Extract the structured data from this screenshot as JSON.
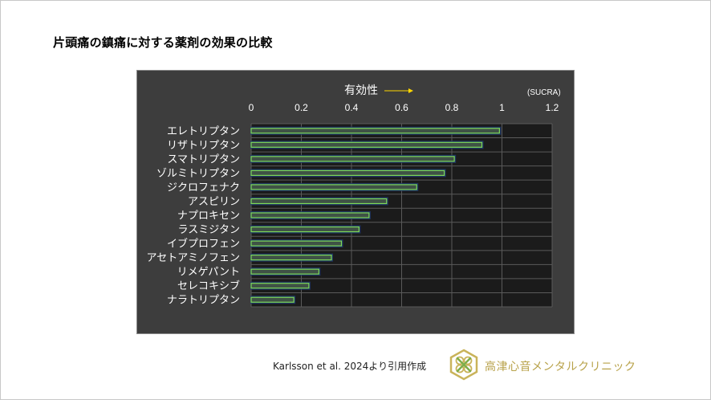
{
  "slide": {
    "title": "片頭痛の鎮痛に対する薬剤の効果の比較",
    "citation": "Karlsson et al. 2024より引用作成",
    "clinic_name": "高津心音メンタルクリニック"
  },
  "colors": {
    "panel_bg": "#3d3d3d",
    "plot_bg": "#1b1b1b",
    "grid": "#5a5a5a",
    "bar_fill": "#3f5246",
    "bar_stroke": "#7ed957",
    "bar_glow": "#1f3a6e",
    "arrow": "#ffd700",
    "text": "#ffffff",
    "brand_gold": "#b8a24a"
  },
  "chart_data": {
    "type": "bar",
    "orientation": "horizontal",
    "axis_title": "有効性",
    "metric_label": "(SUCRA)",
    "xlim": [
      0,
      1.2
    ],
    "ticks": [
      "0",
      "0.2",
      "0.4",
      "0.6",
      "0.8",
      "1",
      "1.2"
    ],
    "tick_values": [
      0,
      0.2,
      0.4,
      0.6,
      0.8,
      1.0,
      1.2
    ],
    "categories": [
      "エレトリプタン",
      "リザトリプタン",
      "スマトリプタン",
      "ゾルミトリプタン",
      "ジクロフェナク",
      "アスピリン",
      "ナプロキセン",
      "ラスミジタン",
      "イブプロフェン",
      "アセトアミノフェン",
      "リメゲパント",
      "セレコキシブ",
      "ナラトリプタン"
    ],
    "values": [
      0.99,
      0.92,
      0.81,
      0.77,
      0.66,
      0.54,
      0.47,
      0.43,
      0.36,
      0.32,
      0.27,
      0.23,
      0.17
    ]
  }
}
